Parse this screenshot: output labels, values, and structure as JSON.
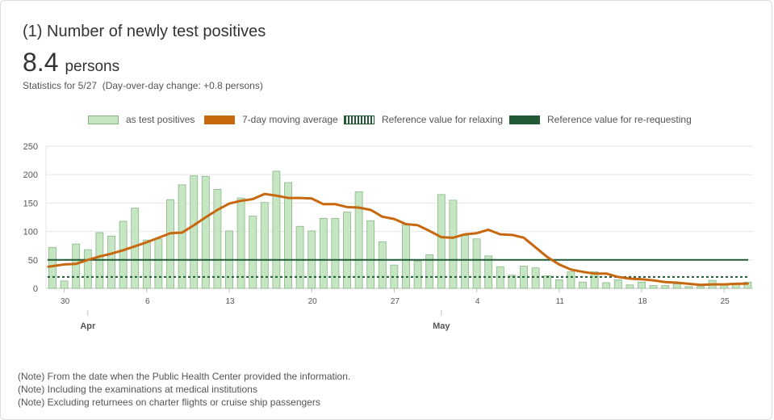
{
  "card": {
    "title": "(1) Number of newly test positives",
    "value": "8.4",
    "unit": "persons",
    "stats": "Statistics for 5/27  (Day-over-day change: +0.8 persons)"
  },
  "legend": {
    "bars": "as test positives",
    "average": "7-day moving average",
    "relax": "Reference value for relaxing",
    "rerequest": "Reference value for re-requesting"
  },
  "notes": [
    "(Note) From the date when the Public Health Center provided the information.",
    "(Note) Including the examinations at medical institutions",
    "(Note) Excluding returnees on charter flights or cruise ship passengers"
  ],
  "colors": {
    "bar_fill": "#c6e6c3",
    "bar_stroke": "#89b586",
    "average_line": "#c8680e",
    "reference_lines": "#1f5a35"
  },
  "chart_data": {
    "type": "bar",
    "title": "",
    "xlabel": "",
    "ylabel": "",
    "ylim": [
      0,
      250
    ],
    "yticks": [
      0,
      50,
      100,
      150,
      200,
      250
    ],
    "grid": true,
    "legend_position": "top-center",
    "x_start": "2020-03-29",
    "x_end": "2020-05-27",
    "x_tick_labels": [
      {
        "date": "2020-03-30",
        "label": "30"
      },
      {
        "date": "2020-04-06",
        "label": "6"
      },
      {
        "date": "2020-04-13",
        "label": "13"
      },
      {
        "date": "2020-04-20",
        "label": "20"
      },
      {
        "date": "2020-04-27",
        "label": "27"
      },
      {
        "date": "2020-05-04",
        "label": "4"
      },
      {
        "date": "2020-05-11",
        "label": "11"
      },
      {
        "date": "2020-05-18",
        "label": "18"
      },
      {
        "date": "2020-05-25",
        "label": "25"
      }
    ],
    "month_labels": [
      {
        "date": "2020-04-01",
        "label": "Apr"
      },
      {
        "date": "2020-05-01",
        "label": "May"
      }
    ],
    "series": [
      {
        "name": "as test positives",
        "type": "bar",
        "values": [
          72,
          13,
          78,
          68,
          98,
          92,
          118,
          141,
          85,
          87,
          156,
          182,
          198,
          197,
          174,
          101,
          159,
          127,
          151,
          206,
          186,
          109,
          101,
          123,
          123,
          134,
          170,
          119,
          82,
          41,
          112,
          48,
          59,
          165,
          155,
          93,
          87,
          57,
          38,
          23,
          39,
          36,
          22,
          15,
          29,
          11,
          29,
          10,
          15,
          6,
          11,
          5,
          5,
          8,
          3,
          3,
          14,
          8,
          9,
          11
        ]
      },
      {
        "name": "7-day moving average",
        "type": "line",
        "values": [
          38,
          42,
          43,
          50,
          56,
          61,
          67,
          74,
          81,
          89,
          97,
          98,
          111,
          125,
          138,
          149,
          154,
          157,
          166,
          163,
          159,
          159,
          158,
          148,
          148,
          143,
          142,
          138,
          126,
          122,
          113,
          111,
          101,
          90,
          89,
          95,
          97,
          103,
          95,
          94,
          89,
          72,
          55,
          42,
          33,
          29,
          26,
          26,
          20,
          17,
          16,
          14,
          11,
          10,
          8,
          6,
          7,
          7,
          8,
          8.4
        ]
      },
      {
        "name": "Reference value for relaxing",
        "type": "reference",
        "value": 20
      },
      {
        "name": "Reference value for re-requesting",
        "type": "reference",
        "value": 50
      }
    ]
  }
}
